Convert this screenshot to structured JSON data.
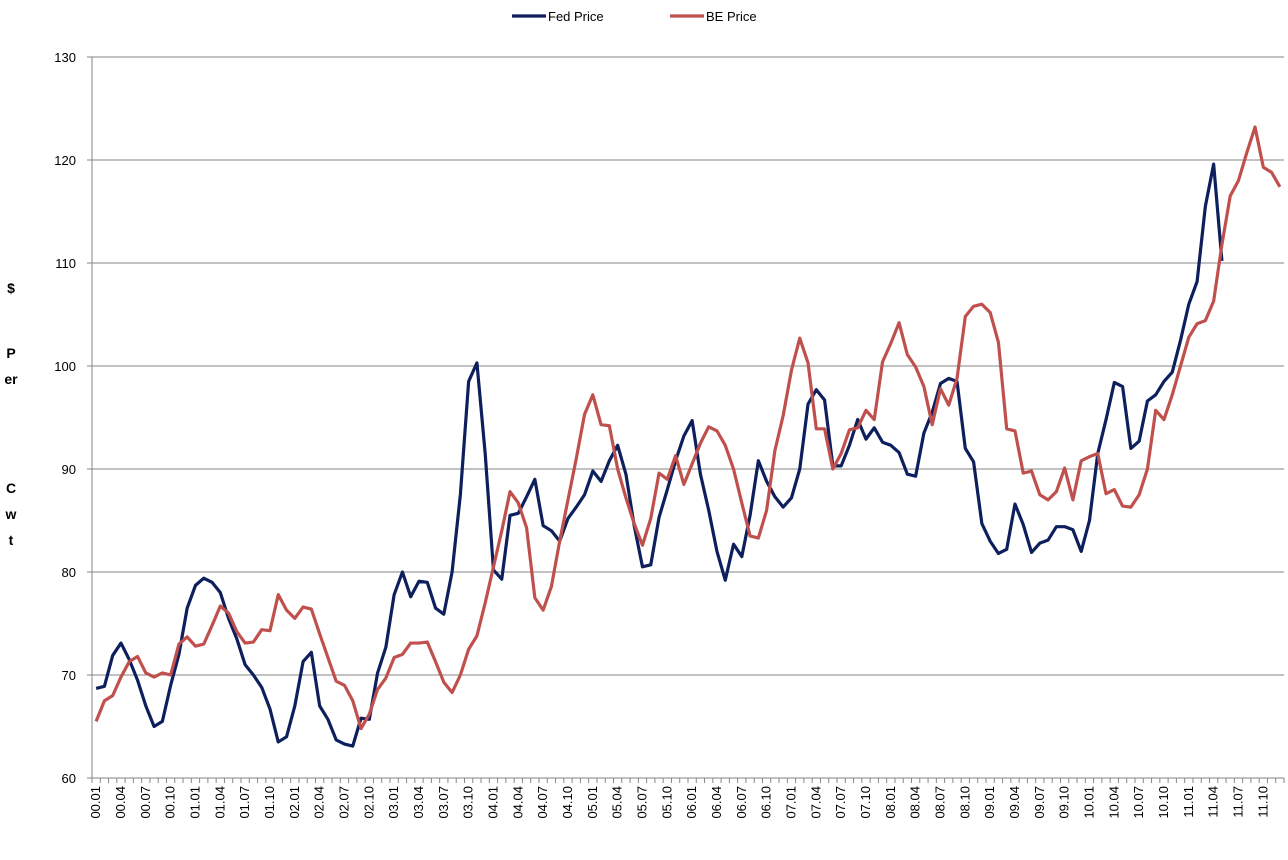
{
  "chart_data": {
    "type": "line",
    "ylabel": [
      "$",
      "Per",
      "Cwt"
    ],
    "categories": [
      "00.01",
      null,
      null,
      "00.04",
      null,
      null,
      "00.07",
      null,
      null,
      "00.10",
      null,
      null,
      "01.01",
      null,
      null,
      "01.04",
      null,
      null,
      "01.07",
      null,
      null,
      "01.10",
      null,
      null,
      "02.01",
      null,
      null,
      "02.04",
      null,
      null,
      "02.07",
      null,
      null,
      "02.10",
      null,
      null,
      "03.01",
      null,
      null,
      "03.04",
      null,
      null,
      "03.07",
      null,
      null,
      "03.10",
      null,
      null,
      "04.01",
      null,
      null,
      "04.04",
      null,
      null,
      "04.07",
      null,
      null,
      "04.10",
      null,
      null,
      "05.01",
      null,
      null,
      "05.04",
      null,
      null,
      "05.07",
      null,
      null,
      "05.10",
      null,
      null,
      "06.01",
      null,
      null,
      "06.04",
      null,
      null,
      "06.07",
      null,
      null,
      "06.10",
      null,
      null,
      "07.01",
      null,
      null,
      "07.04",
      null,
      null,
      "07.07",
      null,
      null,
      "07.10",
      null,
      null,
      "08.01",
      null,
      null,
      "08.04",
      null,
      null,
      "08.07",
      null,
      null,
      "08.10",
      null,
      null,
      "09.01",
      null,
      null,
      "09.04",
      null,
      null,
      "09.07",
      null,
      null,
      "09.10",
      null,
      null,
      "10.01",
      null,
      null,
      "10.04",
      null,
      null,
      "10.07",
      null,
      null,
      "10.10",
      null,
      null,
      "11.01",
      null,
      null,
      "11.04",
      null,
      null,
      "11.07",
      null,
      null,
      "11.10",
      null,
      null
    ],
    "series": [
      {
        "name": "Fed Price",
        "color": "#0d1f5c",
        "values": [
          68.7,
          68.9,
          71.9,
          73.1,
          71.5,
          69.5,
          67,
          65,
          65.5,
          69,
          72,
          76.5,
          78.7,
          79.4,
          79,
          78,
          75.5,
          73.5,
          71,
          70,
          68.8,
          66.7,
          63.5,
          64,
          67,
          71.3,
          72.2,
          67,
          65.7,
          63.7,
          63.3,
          63.1,
          65.8,
          65.7,
          70.2,
          72.7,
          77.8,
          80,
          77.6,
          79.1,
          79,
          76.5,
          75.9,
          80,
          87.5,
          98.5,
          100.3,
          91.5,
          80.2,
          79.3,
          85.5,
          85.7,
          87.3,
          89,
          84.5,
          84,
          83,
          85.2,
          86.3,
          87.5,
          89.8,
          88.8,
          90.8,
          92.3,
          89.5,
          84.5,
          80.5,
          80.7,
          85.3,
          88,
          90.8,
          93.2,
          94.7,
          89.5,
          86,
          82,
          79.2,
          82.7,
          81.5,
          85.5,
          90.8,
          88.8,
          87.3,
          86.3,
          87.2,
          90,
          96.3,
          97.7,
          96.7,
          90.3,
          90.3,
          92.3,
          94.8,
          92.9,
          94,
          92.6,
          92.3,
          91.6,
          89.5,
          89.3,
          93.5,
          95.5,
          98.3,
          98.8,
          98.5,
          92,
          90.7,
          84.7,
          83,
          81.8,
          82.2,
          86.6,
          84.6,
          81.9,
          82.8,
          83.1,
          84.4,
          84.4,
          84.1,
          82,
          85,
          91.5,
          94.8,
          98.4,
          98,
          92,
          92.7,
          96.6,
          97.2,
          98.5,
          99.4,
          102.5,
          106,
          108.2,
          115.5,
          119.6,
          110.2,
          null,
          null,
          null,
          null,
          null,
          null,
          null
        ]
      },
      {
        "name": "BE Price",
        "color": "#c0504d",
        "values": [
          65.5,
          67.5,
          68,
          69.8,
          71.3,
          71.8,
          70.2,
          69.8,
          70.2,
          70,
          73,
          73.7,
          72.8,
          73,
          74.8,
          76.7,
          76,
          74.2,
          73.1,
          73.2,
          74.4,
          74.3,
          77.8,
          76.3,
          75.5,
          76.6,
          76.4,
          74,
          71.7,
          69.4,
          69,
          67.5,
          64.8,
          66.2,
          68.6,
          69.7,
          71.7,
          72,
          73.1,
          73.1,
          73.2,
          71.3,
          69.3,
          68.3,
          70,
          72.5,
          73.8,
          77,
          80.5,
          84,
          87.8,
          86.7,
          84.3,
          77.5,
          76.3,
          78.6,
          83,
          87,
          91,
          95.3,
          97.2,
          94.3,
          94.2,
          90,
          87.2,
          84.7,
          82.6,
          85.2,
          89.6,
          89,
          91.3,
          88.5,
          90.5,
          92.5,
          94.1,
          93.7,
          92.3,
          90,
          86.7,
          83.5,
          83.3,
          86,
          91.8,
          95.2,
          99.6,
          102.7,
          100.3,
          93.9,
          93.9,
          90,
          91.5,
          93.8,
          94,
          95.7,
          94.8,
          100.4,
          102.2,
          104.2,
          101.1,
          99.9,
          98,
          94.3,
          97.8,
          96.2,
          98.8,
          104.8,
          105.8,
          106,
          105.2,
          102.3,
          93.9,
          93.7,
          89.6,
          89.8,
          87.5,
          87,
          87.8,
          90.1,
          87,
          90.8,
          91.2,
          91.5,
          87.6,
          88,
          86.4,
          86.3,
          87.5,
          90,
          95.7,
          94.8,
          97.2,
          100,
          102.8,
          104.1,
          104.4,
          106.3,
          111.8,
          116.5,
          118,
          120.7,
          123.2,
          119.3,
          118.8,
          117.4
        ]
      }
    ],
    "ylim": [
      60,
      130
    ],
    "yticks": [
      60,
      70,
      80,
      90,
      100,
      110,
      120,
      130
    ],
    "grid": true,
    "legend": "top"
  }
}
